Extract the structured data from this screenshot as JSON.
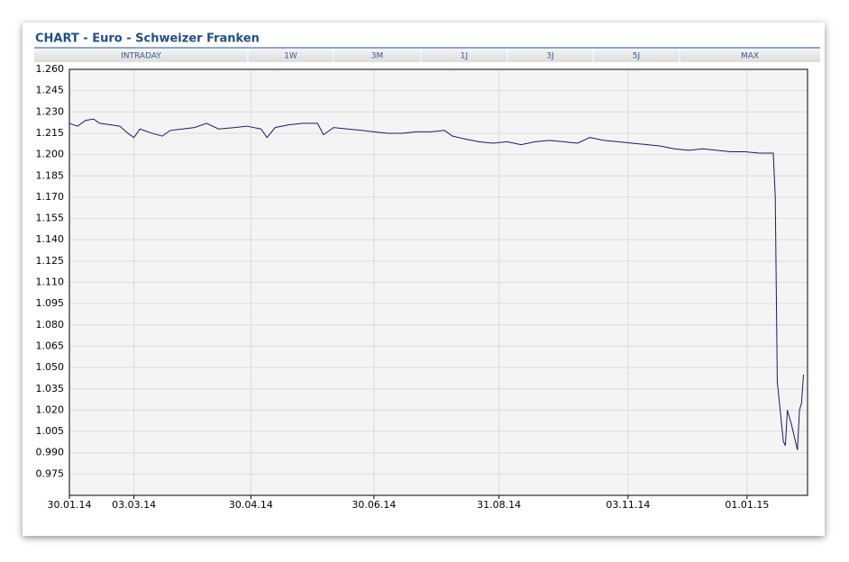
{
  "header": {
    "title": "CHART - Euro - Schweizer Franken",
    "tabs": [
      "INTRADAY",
      "1W",
      "3M",
      "1J",
      "3J",
      "5J",
      "MAX"
    ]
  },
  "chart_data": {
    "type": "line",
    "x": [
      "2014-01-30",
      "2014-02-03",
      "2014-02-07",
      "2014-02-11",
      "2014-02-14",
      "2014-02-19",
      "2014-02-24",
      "2014-02-28",
      "2014-03-03",
      "2014-03-06",
      "2014-03-12",
      "2014-03-17",
      "2014-03-21",
      "2014-03-27",
      "2014-04-02",
      "2014-04-08",
      "2014-04-14",
      "2014-04-22",
      "2014-04-28",
      "2014-05-05",
      "2014-05-08",
      "2014-05-12",
      "2014-05-19",
      "2014-05-26",
      "2014-06-02",
      "2014-06-05",
      "2014-06-10",
      "2014-06-17",
      "2014-06-24",
      "2014-06-30",
      "2014-07-07",
      "2014-07-14",
      "2014-07-21",
      "2014-07-28",
      "2014-08-04",
      "2014-08-08",
      "2014-08-14",
      "2014-08-21",
      "2014-08-28",
      "2014-09-04",
      "2014-09-11",
      "2014-09-18",
      "2014-09-25",
      "2014-10-02",
      "2014-10-09",
      "2014-10-15",
      "2014-10-22",
      "2014-10-29",
      "2014-11-05",
      "2014-11-12",
      "2014-11-19",
      "2014-11-26",
      "2014-12-03",
      "2014-12-10",
      "2014-12-17",
      "2014-12-24",
      "2014-12-31",
      "2015-01-07",
      "2015-01-14",
      "2015-01-15",
      "2015-01-16",
      "2015-01-19",
      "2015-01-20",
      "2015-01-21",
      "2015-01-23",
      "2015-01-26",
      "2015-01-27",
      "2015-01-28",
      "2015-01-29"
    ],
    "series": [
      {
        "color": "#1a1a6e",
        "values": [
          1.222,
          1.22,
          1.224,
          1.225,
          1.222,
          1.221,
          1.22,
          1.215,
          1.212,
          1.218,
          1.215,
          1.213,
          1.217,
          1.218,
          1.219,
          1.222,
          1.218,
          1.219,
          1.22,
          1.218,
          1.212,
          1.219,
          1.221,
          1.222,
          1.222,
          1.214,
          1.219,
          1.218,
          1.217,
          1.216,
          1.215,
          1.215,
          1.216,
          1.216,
          1.217,
          1.213,
          1.211,
          1.209,
          1.208,
          1.209,
          1.207,
          1.209,
          1.21,
          1.209,
          1.208,
          1.212,
          1.21,
          1.209,
          1.208,
          1.207,
          1.206,
          1.204,
          1.203,
          1.204,
          1.203,
          1.202,
          1.202,
          1.201,
          1.201,
          1.17,
          1.04,
          0.998,
          0.995,
          1.02,
          1.01,
          0.992,
          1.02,
          1.025,
          1.045
        ]
      }
    ],
    "xlim": [
      "2014-01-30",
      "2015-01-31"
    ],
    "xticks": [
      {
        "value": "2014-01-30",
        "label": "30.01.14"
      },
      {
        "value": "2014-03-03",
        "label": "03.03.14"
      },
      {
        "value": "2014-04-30",
        "label": "30.04.14"
      },
      {
        "value": "2014-06-30",
        "label": "30.06.14"
      },
      {
        "value": "2014-08-31",
        "label": "31.08.14"
      },
      {
        "value": "2014-11-03",
        "label": "03.11.14"
      },
      {
        "value": "2015-01-01",
        "label": "01.01.15"
      }
    ],
    "ylim": [
      0.96,
      1.26
    ],
    "yticks": [
      0.975,
      {
        "value": 0.99,
        "label": "0.990"
      },
      1.005,
      {
        "value": 1.02,
        "label": "1.020"
      },
      1.035,
      {
        "value": 1.05,
        "label": "1.050"
      },
      1.065,
      {
        "value": 1.08,
        "label": "1.080"
      },
      1.095,
      {
        "value": 1.11,
        "label": "1.110"
      },
      1.125,
      {
        "value": 1.14,
        "label": "1.140"
      },
      1.155,
      {
        "value": 1.17,
        "label": "1.170"
      },
      1.185,
      {
        "value": 1.2,
        "label": "1.200"
      },
      1.215,
      {
        "value": 1.23,
        "label": "1.230"
      },
      1.245,
      {
        "value": 1.26,
        "label": "1.260"
      }
    ],
    "grid": true
  }
}
